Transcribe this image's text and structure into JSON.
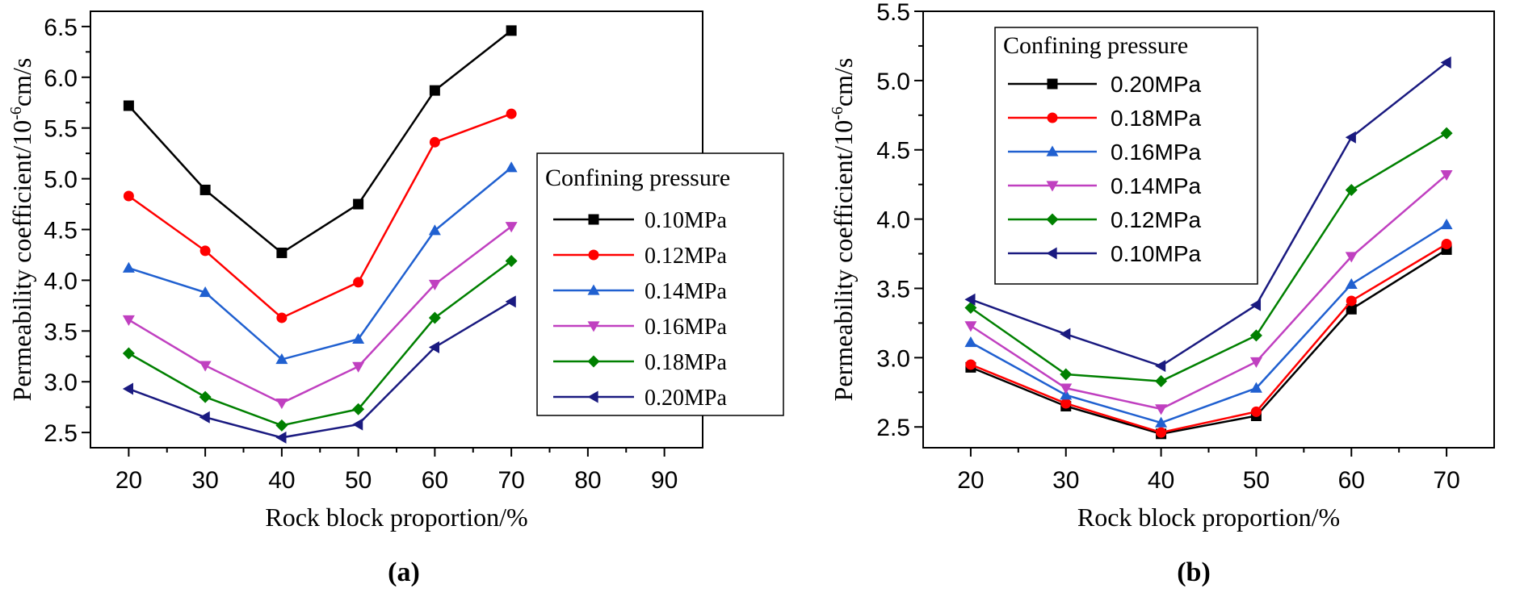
{
  "chart_data": [
    {
      "type": "line",
      "panel_label": "(a)",
      "xlabel": "Rock block proportion/%",
      "ylabel": {
        "prefix": "Permeability coefficient/10",
        "sup": "-6",
        "suffix": "cm/s"
      },
      "xlim": [
        15,
        95
      ],
      "ylim": [
        2.35,
        6.65
      ],
      "xticks": [
        20,
        30,
        40,
        50,
        60,
        70,
        80,
        90
      ],
      "xtick_labels": [
        "20",
        "30",
        "40",
        "50",
        "60",
        "70",
        "80",
        "90"
      ],
      "yticks": [
        2.5,
        3.0,
        3.5,
        4.0,
        4.5,
        5.0,
        5.5,
        6.0,
        6.5
      ],
      "ytick_labels": [
        "2.5",
        "3.0",
        "3.5",
        "4.0",
        "4.5",
        "5.0",
        "5.5",
        "6.0",
        "6.5"
      ],
      "grid": false,
      "legend_title": "Confining pressure",
      "legend_position": "center-right",
      "x": [
        20,
        30,
        40,
        50,
        60,
        70
      ],
      "series": [
        {
          "name": "0.10MPa",
          "color": "#000000",
          "marker": "square",
          "values": [
            5.72,
            4.89,
            4.27,
            4.75,
            5.87,
            6.46
          ]
        },
        {
          "name": "0.12MPa",
          "color": "#ff0000",
          "marker": "circle",
          "values": [
            4.83,
            4.29,
            3.63,
            3.98,
            5.36,
            5.64
          ]
        },
        {
          "name": "0.14MPa",
          "color": "#2060d0",
          "marker": "triangle-up",
          "values": [
            4.12,
            3.88,
            3.22,
            3.42,
            4.49,
            5.11
          ]
        },
        {
          "name": "0.16MPa",
          "color": "#c040c0",
          "marker": "triangle-down",
          "values": [
            3.61,
            3.16,
            2.79,
            3.15,
            3.96,
            4.53
          ]
        },
        {
          "name": "0.18MPa",
          "color": "#008000",
          "marker": "diamond",
          "values": [
            3.28,
            2.85,
            2.57,
            2.73,
            3.63,
            4.19
          ]
        },
        {
          "name": "0.20MPa",
          "color": "#1a1a80",
          "marker": "triangle-left",
          "values": [
            2.93,
            2.65,
            2.45,
            2.58,
            3.34,
            3.79
          ]
        }
      ]
    },
    {
      "type": "line",
      "panel_label": "(b)",
      "xlabel": "Rock block proportion/%",
      "ylabel": {
        "prefix": "Permeability coefficient/10",
        "sup": "-6",
        "suffix": "cm/s"
      },
      "xlim": [
        15,
        75
      ],
      "ylim": [
        2.35,
        5.5
      ],
      "xticks": [
        20,
        30,
        40,
        50,
        60,
        70
      ],
      "xtick_labels": [
        "20",
        "30",
        "40",
        "50",
        "60",
        "70"
      ],
      "yticks": [
        2.5,
        3.0,
        3.5,
        4.0,
        4.5,
        5.0,
        5.5
      ],
      "ytick_labels": [
        "2.5",
        "3.0",
        "3.5",
        "4.0",
        "4.5",
        "5.0",
        "5.5"
      ],
      "grid": false,
      "legend_title": "Confining pressure",
      "legend_position": "top-left",
      "x": [
        20,
        30,
        40,
        50,
        60,
        70
      ],
      "series": [
        {
          "name": "0.20MPa",
          "color": "#000000",
          "marker": "square",
          "values": [
            2.93,
            2.65,
            2.45,
            2.58,
            3.35,
            3.78
          ]
        },
        {
          "name": "0.18MPa",
          "color": "#ff0000",
          "marker": "circle",
          "values": [
            2.95,
            2.67,
            2.46,
            2.61,
            3.41,
            3.82
          ]
        },
        {
          "name": "0.16MPa",
          "color": "#2060d0",
          "marker": "triangle-up",
          "values": [
            3.11,
            2.73,
            2.53,
            2.78,
            3.53,
            3.96
          ]
        },
        {
          "name": "0.14MPa",
          "color": "#c040c0",
          "marker": "triangle-down",
          "values": [
            3.23,
            2.78,
            2.63,
            2.97,
            3.73,
            4.32
          ]
        },
        {
          "name": "0.12MPa",
          "color": "#008000",
          "marker": "diamond",
          "values": [
            3.36,
            2.88,
            2.83,
            3.16,
            4.21,
            4.62
          ]
        },
        {
          "name": "0.10MPa",
          "color": "#1a1a80",
          "marker": "triangle-left",
          "values": [
            3.42,
            3.17,
            2.94,
            3.38,
            4.59,
            5.13
          ]
        }
      ]
    }
  ]
}
